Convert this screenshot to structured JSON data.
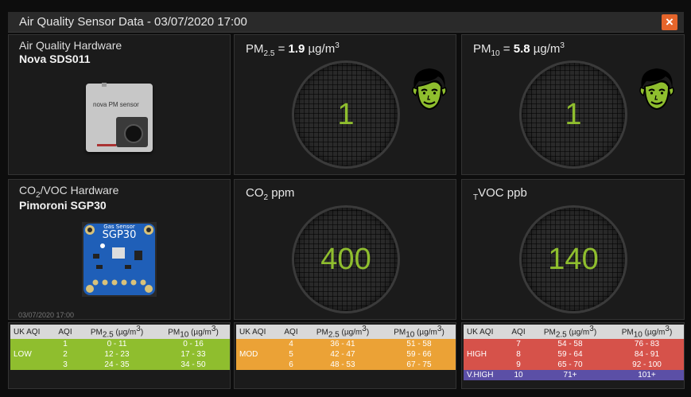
{
  "window": {
    "title": "Air Quality Sensor Data - 03/07/2020 17:00",
    "close_label": "×"
  },
  "aq_hardware": {
    "label": "Air Quality Hardware",
    "name": "Nova SDS011",
    "chip_text": "nova PM sensor"
  },
  "voc_hardware": {
    "label_prefix": "CO",
    "label_sub": "2",
    "label_suffix": "/VOC Hardware",
    "name": "Pimoroni SGP30",
    "board_top": "Gas Sensor",
    "board_main": "SGP30",
    "timestamp": "03/07/2020 17:00"
  },
  "pm25": {
    "prefix": "PM",
    "sub": "2.5",
    "eq": " = ",
    "value": "1.9",
    "unit": " µg/m",
    "sup": "3",
    "dial": "1"
  },
  "pm10": {
    "prefix": "PM",
    "sub": "10",
    "eq": " = ",
    "value": "5.8",
    "unit": " µg/m",
    "sup": "3",
    "dial": "1"
  },
  "co2": {
    "prefix": "CO",
    "sub": "2",
    "suffix": " ppm",
    "dial": "400"
  },
  "tvoc": {
    "sub": "T",
    "suffix": "VOC ppb",
    "dial": "140"
  },
  "tables": {
    "headers": {
      "uk": "UK AQI",
      "aqi": "AQI",
      "pm25_prefix": "PM",
      "pm25_sub": "2.5",
      "pm25_unit": " (µg/m",
      "pm25_sup": "3",
      "close": ")",
      "pm10_prefix": "PM",
      "pm10_sub": "10",
      "pm10_unit": " (µg/m",
      "pm10_sup": "3"
    },
    "low": {
      "band": "LOW",
      "rows": [
        {
          "aqi": "1",
          "pm25": "0 - 11",
          "pm10": "0 - 16"
        },
        {
          "aqi": "2",
          "pm25": "12 - 23",
          "pm10": "17 - 33"
        },
        {
          "aqi": "3",
          "pm25": "24 - 35",
          "pm10": "34 - 50"
        }
      ]
    },
    "mod": {
      "band": "MOD",
      "rows": [
        {
          "aqi": "4",
          "pm25": "36 - 41",
          "pm10": "51 - 58"
        },
        {
          "aqi": "5",
          "pm25": "42 - 47",
          "pm10": "59 - 66"
        },
        {
          "aqi": "6",
          "pm25": "48 - 53",
          "pm10": "67 - 75"
        }
      ]
    },
    "high": {
      "band": "HIGH",
      "rows": [
        {
          "aqi": "7",
          "pm25": "54 - 58",
          "pm10": "76 - 83"
        },
        {
          "aqi": "8",
          "pm25": "59 - 64",
          "pm10": "84 - 91"
        },
        {
          "aqi": "9",
          "pm25": "65 - 70",
          "pm10": "92 - 100"
        }
      ]
    },
    "vhigh": {
      "band": "V.HIGH",
      "aqi": "10",
      "pm25": "71+",
      "pm10": "101+"
    }
  },
  "colors": {
    "low": "#8fbe2e",
    "mod": "#eba236",
    "high": "#d6524a",
    "vhigh": "#5b4fa6",
    "dial_text": "#8fbe2e",
    "close": "#e5652b"
  },
  "icons": {
    "face": "happy-face-icon",
    "close": "close-icon"
  }
}
